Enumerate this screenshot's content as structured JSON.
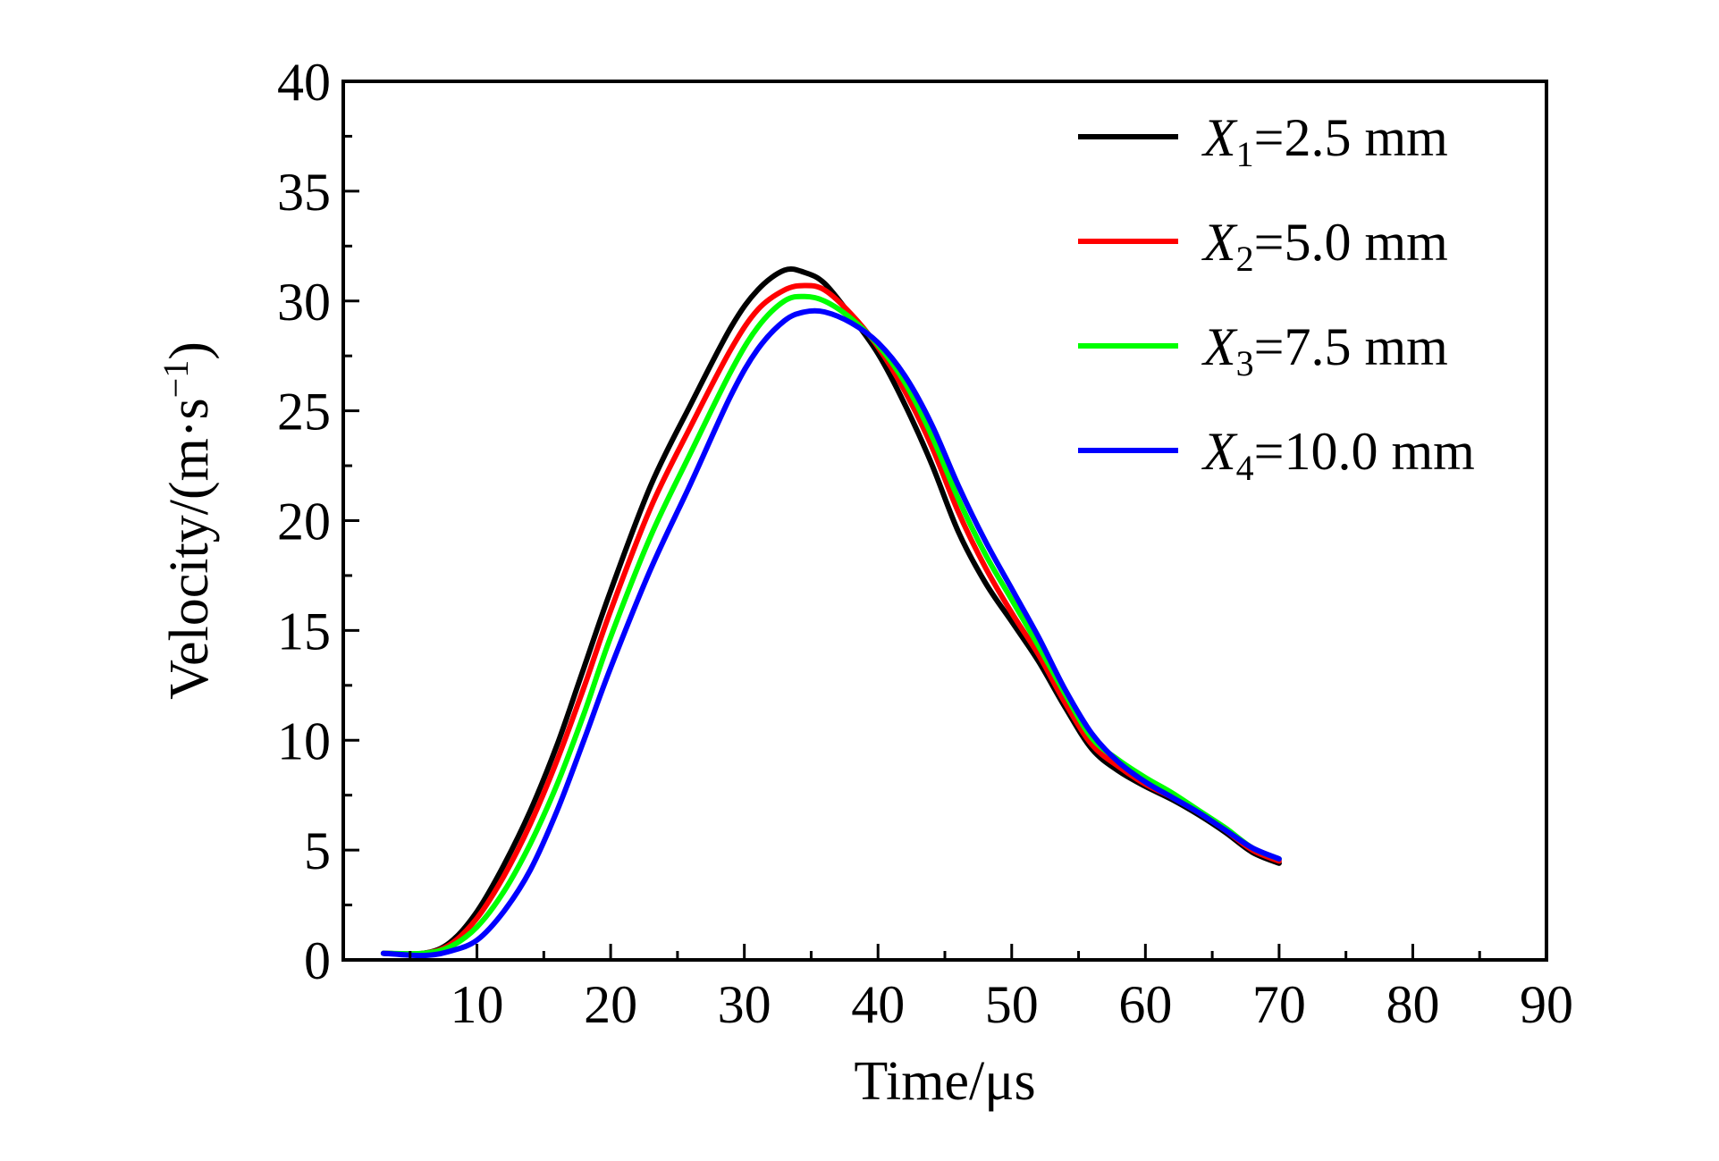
{
  "chart_data": {
    "type": "line",
    "title": "",
    "xlabel": "Time/μs",
    "ylabel_prefix": "Velocity/(m·s",
    "ylabel_sup": "−1",
    "ylabel_suffix": ")",
    "xlim": [
      0,
      90
    ],
    "ylim": [
      0,
      40
    ],
    "x_ticks": [
      10,
      20,
      30,
      40,
      50,
      60,
      70,
      80,
      90
    ],
    "y_ticks": [
      0,
      5,
      10,
      15,
      20,
      25,
      30,
      35,
      40
    ],
    "x_tick_labels": [
      "10",
      "20",
      "30",
      "40",
      "50",
      "60",
      "70",
      "80",
      "90"
    ],
    "y_tick_labels": [
      "0",
      "5",
      "10",
      "15",
      "20",
      "25",
      "30",
      "35",
      "40"
    ],
    "grid": false,
    "legend_position": "top-right",
    "series": [
      {
        "name": "X1=2.5 mm",
        "legend_var": "X",
        "legend_sub": "1",
        "legend_rest": "=2.5 mm",
        "color": "#000000",
        "x": [
          3,
          6,
          8,
          10,
          12,
          14,
          16,
          18,
          20,
          23,
          26,
          29,
          31,
          33,
          34.5,
          36,
          38,
          40,
          42,
          44,
          46,
          48,
          50,
          52,
          54,
          56,
          58,
          60,
          62,
          64,
          66,
          68,
          70
        ],
        "y": [
          0.3,
          0.3,
          0.8,
          2.2,
          4.3,
          6.8,
          9.8,
          13.3,
          16.8,
          21.6,
          25.3,
          28.8,
          30.5,
          31.4,
          31.3,
          30.8,
          29.3,
          27.6,
          25.3,
          22.6,
          19.5,
          17.2,
          15.4,
          13.6,
          11.5,
          9.6,
          8.6,
          7.9,
          7.3,
          6.6,
          5.8,
          4.9,
          4.4
        ]
      },
      {
        "name": "X2=5.0 mm",
        "legend_var": "X",
        "legend_sub": "2",
        "legend_rest": "=5.0 mm",
        "color": "#ff0000",
        "x": [
          3,
          6,
          8,
          10,
          12,
          14,
          16,
          18,
          20,
          23,
          26,
          29,
          31,
          33,
          34.5,
          36,
          38,
          40,
          42,
          44,
          46,
          48,
          50,
          52,
          54,
          56,
          58,
          60,
          62,
          64,
          66,
          68,
          70
        ],
        "y": [
          0.3,
          0.3,
          0.7,
          1.9,
          3.8,
          6.2,
          9.1,
          12.4,
          15.9,
          20.6,
          24.3,
          27.8,
          29.6,
          30.5,
          30.7,
          30.5,
          29.4,
          27.9,
          25.9,
          23.4,
          20.4,
          17.9,
          15.8,
          13.9,
          11.7,
          9.8,
          8.8,
          8.0,
          7.4,
          6.7,
          5.9,
          5.0,
          4.5
        ]
      },
      {
        "name": "X3=7.5 mm",
        "legend_var": "X",
        "legend_sub": "3",
        "legend_rest": "=7.5 mm",
        "color": "#00ff00",
        "x": [
          3,
          6,
          8,
          10,
          12,
          14,
          16,
          18,
          20,
          23,
          26,
          29,
          31,
          33,
          34.5,
          36,
          38,
          40,
          42,
          44,
          46,
          48,
          50,
          52,
          54,
          56,
          58,
          60,
          62,
          64,
          66,
          68,
          70
        ],
        "y": [
          0.3,
          0.3,
          0.6,
          1.5,
          3.1,
          5.3,
          8.0,
          11.2,
          14.7,
          19.3,
          23.1,
          26.8,
          28.8,
          30.0,
          30.2,
          30.0,
          29.2,
          28.0,
          26.3,
          23.9,
          21.0,
          18.5,
          16.4,
          14.3,
          12.1,
          10.1,
          9.1,
          8.3,
          7.6,
          6.8,
          6.0,
          5.1,
          4.6
        ]
      },
      {
        "name": "X4=10.0 mm",
        "legend_var": "X",
        "legend_sub": "4",
        "legend_rest": "=10.0 mm",
        "color": "#0000ff",
        "x": [
          3,
          6,
          8,
          10,
          12,
          14,
          16,
          18,
          20,
          23,
          26,
          29,
          31,
          33,
          34.5,
          36,
          38,
          40,
          42,
          44,
          46,
          48,
          50,
          52,
          54,
          56,
          58,
          60,
          62,
          64,
          66,
          68,
          70
        ],
        "y": [
          0.3,
          0.2,
          0.4,
          0.9,
          2.2,
          4.1,
          6.8,
          10.0,
          13.3,
          17.8,
          21.7,
          25.7,
          27.8,
          29.1,
          29.5,
          29.5,
          29.0,
          28.1,
          26.6,
          24.4,
          21.6,
          19.1,
          16.9,
          14.7,
          12.3,
          10.3,
          9.0,
          8.1,
          7.4,
          6.7,
          5.9,
          5.1,
          4.6
        ]
      }
    ]
  }
}
